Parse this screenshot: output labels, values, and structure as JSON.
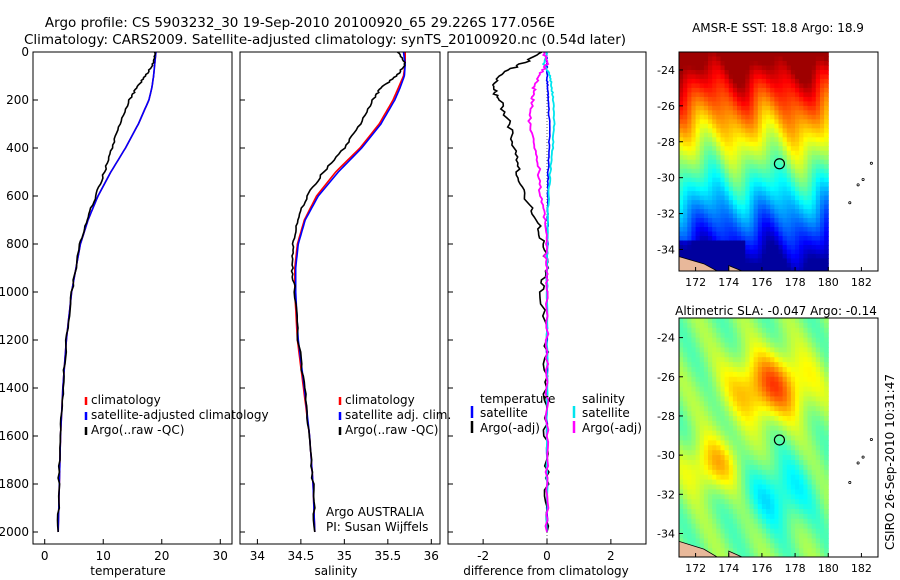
{
  "header": {
    "line1": "Argo profile: CS 5903232_30 19-Sep-2010 20100920_65 29.226S 177.056E",
    "line2": "Climatology: CARS2009. Satellite-adjusted climatology: synTS_20100920.nc (0.54d later)"
  },
  "colors": {
    "climatology": "#ff0000",
    "satellite": "#0000ff",
    "argo": "#000000",
    "salinity_satellite": "#00e5ee",
    "salinity_argo": "#ff00ff"
  },
  "chart_data": [
    {
      "type": "line",
      "panel": "temperature",
      "xlabel": "temperature",
      "ylabel": "",
      "xlim": [
        -2,
        32
      ],
      "ylim": [
        2050,
        0
      ],
      "xticks": [
        0,
        10,
        20,
        30
      ],
      "yticks": [
        0,
        200,
        400,
        600,
        800,
        1000,
        1200,
        1400,
        1600,
        1800,
        2000
      ],
      "legend": [
        "climatology",
        "satellite-adjusted climatology",
        "Argo(..raw -QC)"
      ],
      "depth": [
        0,
        50,
        100,
        150,
        200,
        300,
        400,
        500,
        600,
        700,
        800,
        1000,
        1200,
        1400,
        1600,
        1800,
        2000
      ],
      "series": [
        {
          "name": "climatology",
          "values": [
            19.0,
            18.8,
            18.6,
            18.3,
            17.8,
            16.0,
            13.8,
            11.3,
            9.1,
            7.4,
            6.1,
            4.6,
            3.7,
            3.1,
            2.7,
            2.5,
            2.3
          ]
        },
        {
          "name": "satellite-adjusted climatology",
          "values": [
            19.0,
            18.8,
            18.6,
            18.3,
            17.8,
            16.0,
            13.8,
            11.3,
            9.1,
            7.4,
            6.1,
            4.6,
            3.7,
            3.1,
            2.7,
            2.5,
            2.3
          ]
        },
        {
          "name": "Argo(..raw -QC)",
          "values": [
            18.9,
            18.5,
            17.2,
            15.7,
            14.5,
            12.8,
            11.5,
            10.2,
            8.7,
            7.2,
            6.0,
            4.6,
            3.7,
            3.1,
            2.7,
            2.4,
            2.3
          ]
        }
      ]
    },
    {
      "type": "line",
      "panel": "salinity",
      "xlabel": "salinity",
      "ylabel": "",
      "xlim": [
        33.8,
        36.1
      ],
      "ylim": [
        2050,
        0
      ],
      "xticks": [
        34,
        34.5,
        35,
        35.5,
        36
      ],
      "legend": [
        "climatology",
        "satellite adj. clim.",
        "Argo(..raw -QC)"
      ],
      "annotation": [
        "Argo AUSTRALIA",
        "PI: Susan Wijffels"
      ],
      "depth": [
        0,
        50,
        100,
        150,
        200,
        300,
        400,
        500,
        600,
        700,
        800,
        900,
        1000,
        1200,
        1400,
        1600,
        1800,
        2000
      ],
      "series": [
        {
          "name": "climatology",
          "values": [
            35.7,
            35.7,
            35.68,
            35.62,
            35.56,
            35.4,
            35.18,
            34.9,
            34.68,
            34.54,
            34.46,
            34.43,
            34.43,
            34.46,
            34.53,
            34.6,
            34.64,
            34.66
          ]
        },
        {
          "name": "satellite adj. clim.",
          "values": [
            35.68,
            35.7,
            35.69,
            35.64,
            35.58,
            35.42,
            35.2,
            34.93,
            34.7,
            34.55,
            34.47,
            34.44,
            34.44,
            34.47,
            34.54,
            34.6,
            34.64,
            34.66
          ]
        },
        {
          "name": "Argo(..raw -QC)",
          "values": [
            35.62,
            35.7,
            35.6,
            35.42,
            35.33,
            35.18,
            35.0,
            34.76,
            34.57,
            34.46,
            34.41,
            34.4,
            34.43,
            34.47,
            34.54,
            34.6,
            34.64,
            34.66
          ]
        }
      ]
    },
    {
      "type": "line",
      "panel": "difference",
      "xlabel": "difference from climatology",
      "ylabel": "",
      "xlim": [
        -3.1,
        3.1
      ],
      "ylim": [
        2050,
        0
      ],
      "xticks": [
        -2,
        0,
        2
      ],
      "legend_left": {
        "heading": "temperature",
        "items": [
          "satellite",
          "Argo(-adj)"
        ]
      },
      "legend_right": {
        "heading": "salinity",
        "items": [
          "satellite",
          "Argo(-adj)"
        ]
      },
      "depth": [
        0,
        50,
        100,
        150,
        200,
        300,
        400,
        500,
        600,
        700,
        800,
        900,
        1000,
        1200,
        1400,
        1600,
        1800,
        2000
      ],
      "series": [
        {
          "name": "temperature satellite",
          "values": [
            0.0,
            0.0,
            0.0,
            0.02,
            0.05,
            0.08,
            0.07,
            0.04,
            0.03,
            0.02,
            0.01,
            0.0,
            0.0,
            0.0,
            0.0,
            0.0,
            0.0,
            0.0
          ]
        },
        {
          "name": "temperature Argo(-adj)",
          "values": [
            -0.1,
            -0.8,
            -1.5,
            -1.7,
            -1.5,
            -1.2,
            -1.0,
            -0.9,
            -0.7,
            -0.3,
            -0.1,
            0.0,
            -0.2,
            0.0,
            -0.05,
            -0.05,
            0.0,
            0.0
          ]
        },
        {
          "name": "salinity satellite",
          "values": [
            0.0,
            -0.1,
            0.1,
            0.15,
            0.2,
            0.22,
            0.18,
            0.1,
            0.05,
            0.02,
            0.01,
            0.0,
            0.0,
            0.0,
            0.0,
            0.0,
            0.0,
            0.0
          ]
        },
        {
          "name": "salinity Argo(-adj)",
          "values": [
            -0.1,
            0.0,
            -0.25,
            -0.4,
            -0.45,
            -0.55,
            -0.35,
            -0.25,
            -0.2,
            -0.05,
            -0.05,
            -0.03,
            0.0,
            0.0,
            0.0,
            0.0,
            0.0,
            0.0
          ]
        }
      ]
    },
    {
      "type": "heatmap",
      "panel": "sst-map",
      "title": "AMSR-E SST: 18.8  Argo: 18.9",
      "xlim": [
        171,
        183
      ],
      "ylim": [
        -35.2,
        -23
      ],
      "xticks": [
        172,
        174,
        176,
        178,
        180,
        182
      ],
      "yticks": [
        -24,
        -26,
        -28,
        -30,
        -32,
        -34
      ],
      "float_position": {
        "lon": 177.056,
        "lat": -29.226
      },
      "data_extent_lon": [
        171,
        180
      ]
    },
    {
      "type": "heatmap",
      "panel": "sla-map",
      "title": "Altimetric SLA: -0.047  Argo: -0.14",
      "xlim": [
        171,
        183
      ],
      "ylim": [
        -35.2,
        -23
      ],
      "xticks": [
        172,
        174,
        176,
        178,
        180,
        182
      ],
      "yticks": [
        -24,
        -26,
        -28,
        -30,
        -32,
        -34
      ],
      "float_position": {
        "lon": 177.056,
        "lat": -29.226
      },
      "data_extent_lon": [
        171,
        180
      ]
    }
  ],
  "footer": {
    "stamp": "CSIRO 26-Sep-2010 10:31:47"
  }
}
